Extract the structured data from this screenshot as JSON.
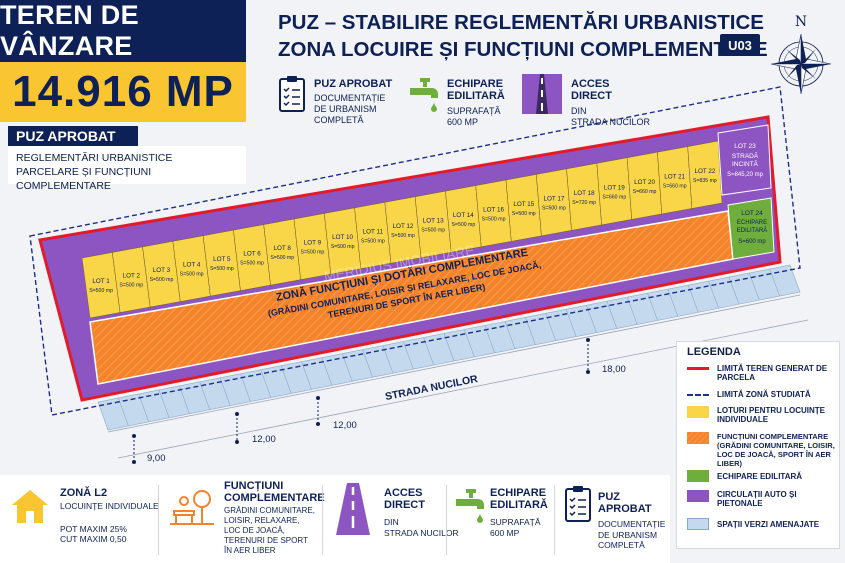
{
  "sale": {
    "title": "TEREN DE VÂNZARE",
    "area": "14.916 MP"
  },
  "puz": {
    "header": "PUZ APROBAT",
    "line1": "REGLEMENTĂRI URBANISTICE",
    "line2": "PARCELARE ȘI FUNCȚIUNI COMPLEMENTARE"
  },
  "main_title": {
    "line1": "PUZ – STABILIRE REGLEMENTĂRI URBANISTICE",
    "line2": "ZONA LOCUIRE ȘI FUNCȚIUNI COMPLEMENTARE"
  },
  "code": "U03",
  "compass": "N",
  "top_info": [
    {
      "title": "PUZ APROBAT",
      "lines": [
        "DOCUMENTAȚIE",
        "DE URBANISM",
        "COMPLETĂ"
      ],
      "icon": "clipboard-icon"
    },
    {
      "title_lines": [
        "ECHIPARE",
        "EDILITARĂ"
      ],
      "lines": [
        "SUPRAFAȚĂ",
        "600 MP"
      ],
      "icon": "faucet-icon"
    },
    {
      "title_lines": [
        "ACCES",
        "DIRECT"
      ],
      "lines": [
        "DIN",
        "STRADA NUCILOR"
      ],
      "icon": "road-icon"
    }
  ],
  "lots": [
    {
      "name": "LOT 1",
      "area": "S=500 mp"
    },
    {
      "name": "LOT 2",
      "area": "S=500 mp"
    },
    {
      "name": "LOT 3",
      "area": "S=500 mp"
    },
    {
      "name": "LOT 4",
      "area": "S=500 mp"
    },
    {
      "name": "LOT 5",
      "area": "S=500 mp"
    },
    {
      "name": "LOT 6",
      "area": "S=500 mp"
    },
    {
      "name": "LOT 8",
      "area": "S=500 mp"
    },
    {
      "name": "LOT 9",
      "area": "S=500 mp"
    },
    {
      "name": "LOT 10",
      "area": "S=500 mp"
    },
    {
      "name": "LOT 11",
      "area": "S=500 mp"
    },
    {
      "name": "LOT 12",
      "area": "S=500 mp"
    },
    {
      "name": "LOT 13",
      "area": "S=500 mp"
    },
    {
      "name": "LOT 14",
      "area": "S=500 mp"
    },
    {
      "name": "LOT 16",
      "area": "S=500 mp"
    },
    {
      "name": "LOT 15",
      "area": "S=500 mp"
    },
    {
      "name": "LOT 17",
      "area": "S=500 mp"
    },
    {
      "name": "LOT 18",
      "area": "S=720 mp"
    },
    {
      "name": "LOT 19",
      "area": "S=660 mp"
    },
    {
      "name": "LOT 20",
      "area": "S=660 mp"
    },
    {
      "name": "LOT 21",
      "area": "S=660 mp"
    },
    {
      "name": "LOT 22",
      "area": "S=835 mp"
    }
  ],
  "lot23": {
    "name": "LOT 23",
    "l1": "STRADĂ",
    "l2": "INCINTĂ",
    "area": "S=845,20 mp"
  },
  "lot24": {
    "name": "LOT 24",
    "l1": "ECHIPARE",
    "l2": "EDILITARĂ",
    "area": "S=600 mp"
  },
  "zone": {
    "l1": "ZONĂ FUNCȚIUNI ȘI DOTĂRI COMPLEMENTARE",
    "l2": "(GRĂDINI COMUNITARE, LOISIR ȘI RELAXARE, LOC DE JOACĂ,",
    "l3": "TERENURI DE SPORT ÎN AER LIBER)"
  },
  "street": "STRADA NUCILOR",
  "dims": [
    "9,00",
    "12,00",
    "12,00",
    "18,00"
  ],
  "watermark": "MERIDIUS IMOBILIARE",
  "legend": {
    "title": "LEGENDA",
    "items": [
      {
        "text": "LIMITĂ TEREN GENERAT DE PARCELA",
        "color": "#e21b2b",
        "type": "line"
      },
      {
        "text": "LIMITĂ ZONĂ STUDIATĂ",
        "color": "#1d2f8a",
        "type": "dash"
      },
      {
        "text": "LOTURI PENTRU LOCUINȚE INDIVIDUALE",
        "color": "#f9d548",
        "type": "fill"
      },
      {
        "text": "FUNCȚIUNI COMPLEMENTARE (GRĂDINI COMUNITARE, LOISIR, LOC DE JOACĂ, SPORT ÎN AER LIBER)",
        "color": "#f5832a",
        "type": "hatch"
      },
      {
        "text": "ECHIPARE EDILITARĂ",
        "color": "#6fae3c",
        "type": "fill"
      },
      {
        "text": "CIRCULAȚII AUTO ȘI PIETONALE",
        "color": "#8d55c2",
        "type": "fill"
      },
      {
        "text": "SPAȚII VERZI AMENAJATE",
        "color": "#c4d9ee",
        "type": "fill"
      }
    ]
  },
  "bottom": {
    "zona": {
      "title": "ZONĂ L2",
      "sub": "LOCUINȚE INDIVIDUALE",
      "l1": "POT MAXIM 25%",
      "l2": "CUT MAXIM 0,50"
    },
    "functiuni": {
      "t1": "FUNCȚIUNI",
      "t2": "COMPLEMENTARE",
      "lines": [
        "GRĂDINI COMUNITARE,",
        "LOISIR, RELAXARE,",
        "LOC DE JOACĂ,",
        "TERENURI DE SPORT",
        "ÎN AER LIBER"
      ]
    },
    "acces": {
      "t1": "ACCES",
      "t2": "DIRECT",
      "l1": "DIN",
      "l2": "STRADA NUCILOR"
    },
    "echipare": {
      "t1": "ECHIPARE",
      "t2": "EDILITARĂ",
      "l1": "SUPRAFAȚĂ",
      "l2": "600 MP"
    },
    "puz": {
      "title": "PUZ APROBAT",
      "lines": [
        "DOCUMENTAȚIE",
        "DE URBANISM",
        "COMPLETĂ"
      ]
    }
  }
}
